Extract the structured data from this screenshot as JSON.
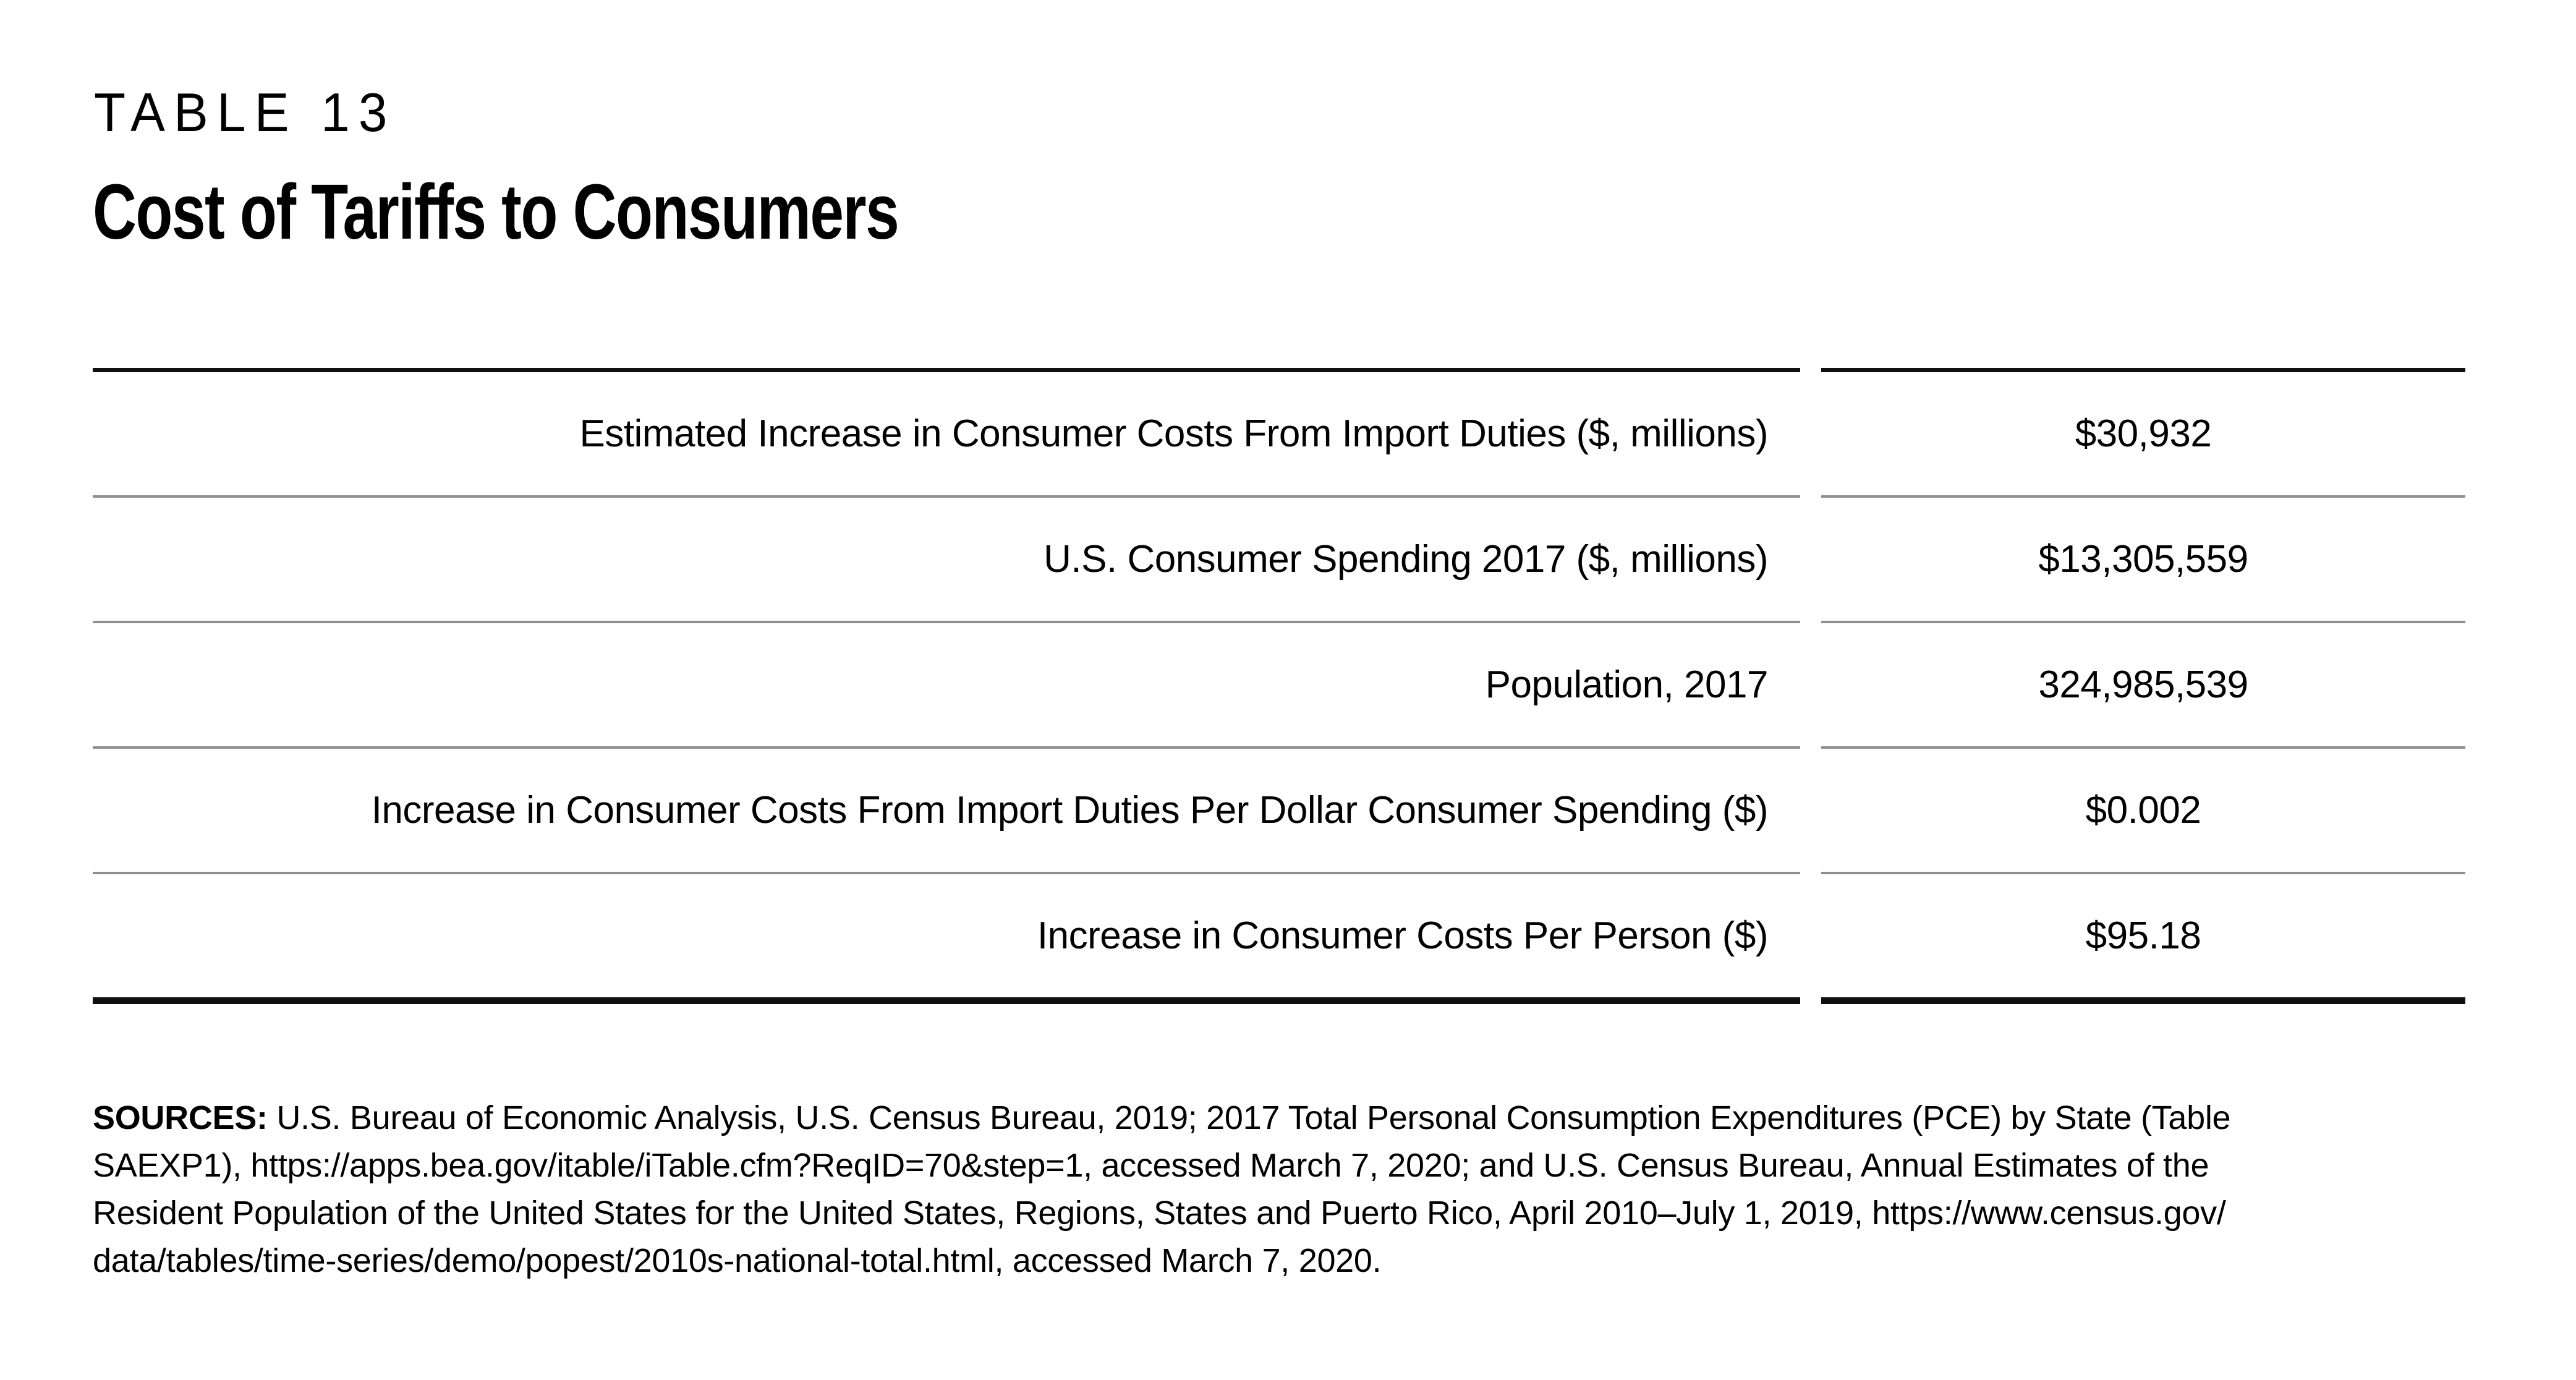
{
  "page": {
    "kicker": "TABLE 13",
    "title": "Cost of Tariffs to Consumers"
  },
  "table": {
    "rows": [
      {
        "label": "Estimated Increase in Consumer Costs From Import Duties ($, millions)",
        "value": "$30,932"
      },
      {
        "label": "U.S. Consumer Spending 2017 ($, millions)",
        "value": "$13,305,559"
      },
      {
        "label": "Population, 2017",
        "value": "324,985,539"
      },
      {
        "label": "Increase in Consumer Costs From Import Duties Per Dollar Consumer Spending ($)",
        "value": "$0.002"
      },
      {
        "label": "Increase in Consumer Costs Per Person ($)",
        "value": "$95.18"
      }
    ]
  },
  "sources": {
    "label": "SOURCES:",
    "lines": [
      " U.S. Bureau of Economic Analysis, U.S. Census Bureau, 2019; 2017 Total Personal Consumption Expenditures (PCE) by State (Table",
      "SAEXP1), https://apps.bea.gov/itable/iTable.cfm?ReqID=70&step=1, accessed March 7, 2020; and U.S. Census Bureau, Annual Estimates of the",
      "Resident Population of the United States for the United States, Regions, States and Puerto Rico, April 2010–July 1, 2019, https://www.census.gov/",
      "data/tables/time-series/demo/popest/2010s-national-total.html, accessed March 7, 2020."
    ]
  },
  "colors": {
    "background": "#ffffff",
    "text": "#000000",
    "rule_heavy": "#101010",
    "rule_light": "#8f8f8f"
  }
}
